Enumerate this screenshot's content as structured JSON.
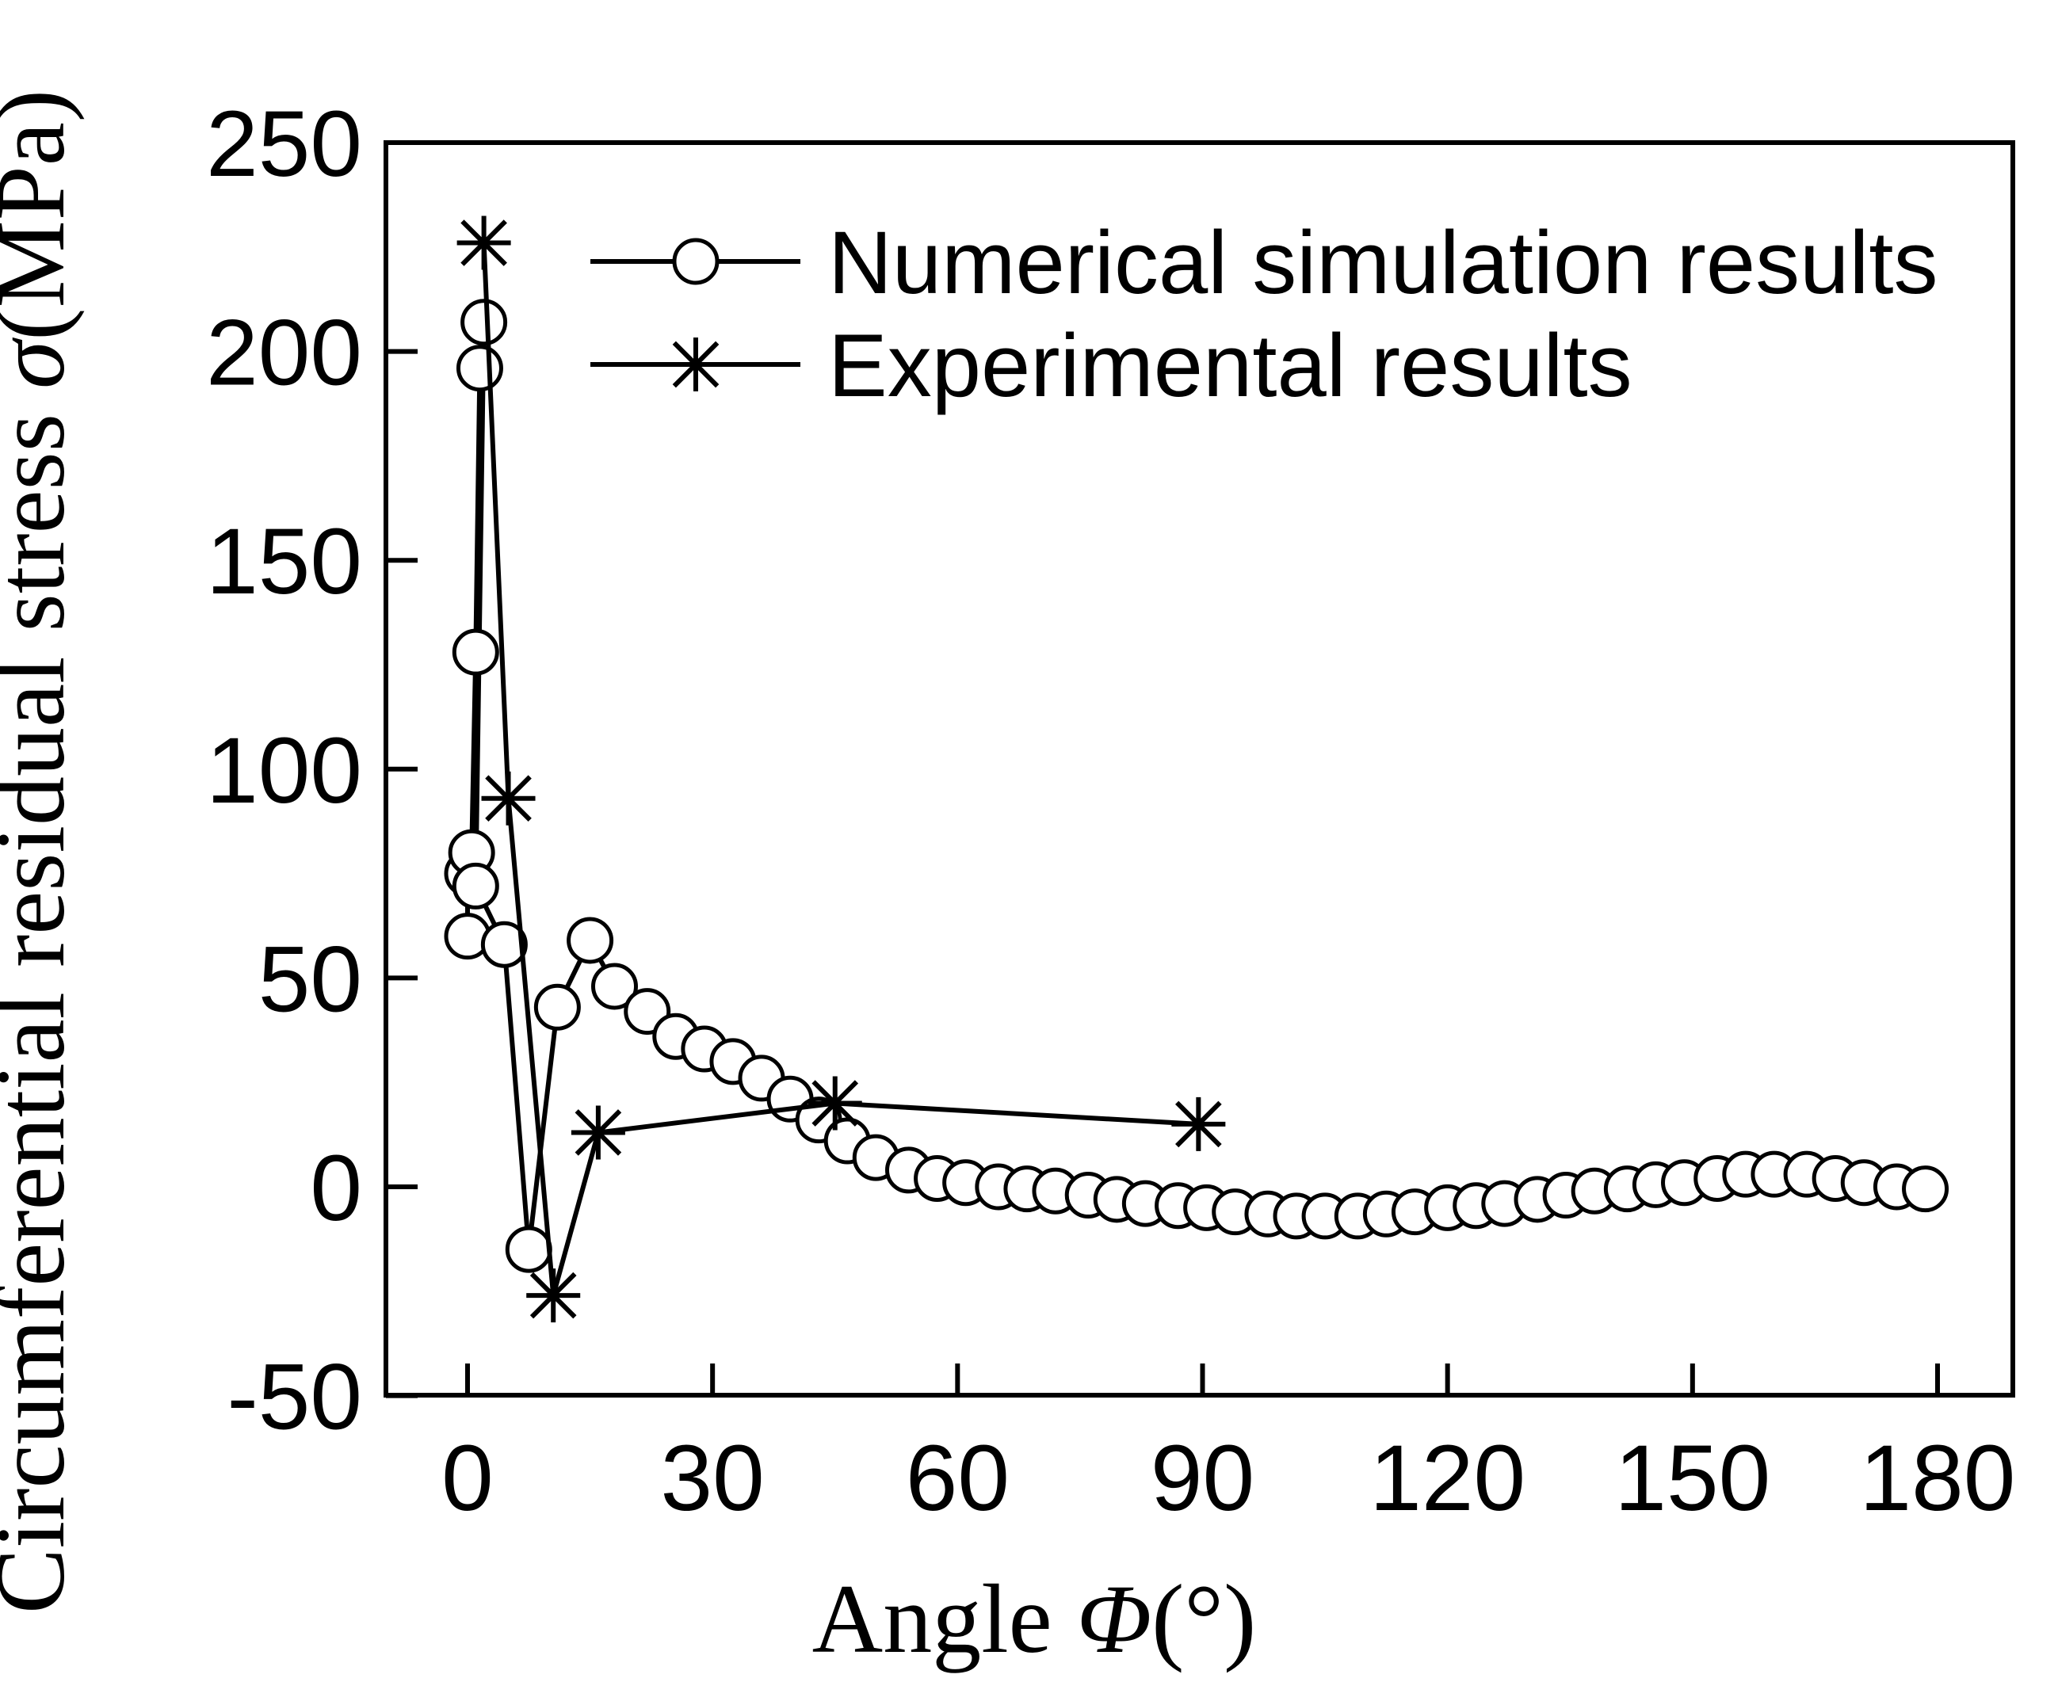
{
  "chart_data": {
    "type": "line",
    "title": "",
    "xlabel": {
      "text": "Angle ",
      "symbol": "Φ",
      "unit": "(°)"
    },
    "ylabel": {
      "text": "Circumferential residual stress ",
      "symbol": "σ",
      "unit": "(MPa)"
    },
    "xlim": [
      -10,
      190
    ],
    "ylim": [
      -50,
      250
    ],
    "xticks": [
      0,
      30,
      60,
      90,
      120,
      150,
      180
    ],
    "yticks": [
      -50,
      0,
      50,
      100,
      150,
      200,
      250
    ],
    "legend_position": "top-right",
    "colors": {
      "line": "#000000",
      "marker_fill": "#ffffff",
      "background": "#ffffff"
    },
    "series": [
      {
        "name": "Numerical simulation results",
        "marker": "circle",
        "points": [
          [
            0,
            60
          ],
          [
            0,
            75
          ],
          [
            0.5,
            80
          ],
          [
            1,
            128
          ],
          [
            1.5,
            196
          ],
          [
            2,
            207
          ],
          [
            1,
            72
          ],
          [
            4.5,
            58
          ],
          [
            7.5,
            -15
          ],
          [
            11,
            43
          ],
          [
            15,
            59
          ],
          [
            18,
            48
          ],
          [
            22,
            42
          ],
          [
            25.5,
            36
          ],
          [
            29,
            33
          ],
          [
            32.5,
            30
          ],
          [
            36,
            26
          ],
          [
            39.5,
            21
          ],
          [
            43,
            16
          ],
          [
            46.5,
            11
          ],
          [
            50,
            7
          ],
          [
            54,
            4
          ],
          [
            57.5,
            2
          ],
          [
            61,
            1
          ],
          [
            65,
            0
          ],
          [
            68.5,
            -0.5
          ],
          [
            72,
            -1
          ],
          [
            76,
            -2
          ],
          [
            79.5,
            -3
          ],
          [
            83,
            -4
          ],
          [
            87,
            -4.5
          ],
          [
            90.5,
            -5
          ],
          [
            94,
            -6
          ],
          [
            98,
            -6.5
          ],
          [
            101.5,
            -7
          ],
          [
            105,
            -7
          ],
          [
            109,
            -7
          ],
          [
            112.5,
            -6.5
          ],
          [
            116,
            -6
          ],
          [
            120,
            -5
          ],
          [
            123.5,
            -4.5
          ],
          [
            127,
            -4
          ],
          [
            131,
            -3
          ],
          [
            134.5,
            -2
          ],
          [
            138,
            -1
          ],
          [
            142,
            -0.5
          ],
          [
            145.5,
            0.5
          ],
          [
            149,
            1
          ],
          [
            153,
            2
          ],
          [
            156.5,
            3
          ],
          [
            160,
            3
          ],
          [
            164,
            3
          ],
          [
            167.5,
            2
          ],
          [
            171,
            1
          ],
          [
            175,
            0
          ],
          [
            178.5,
            -0.5
          ]
        ]
      },
      {
        "name": "Experimental results",
        "marker": "asterisk",
        "points": [
          [
            2,
            226
          ],
          [
            5,
            93
          ],
          [
            10.5,
            -26
          ],
          [
            16,
            13
          ],
          [
            45,
            20
          ],
          [
            89.5,
            15
          ]
        ]
      }
    ]
  }
}
